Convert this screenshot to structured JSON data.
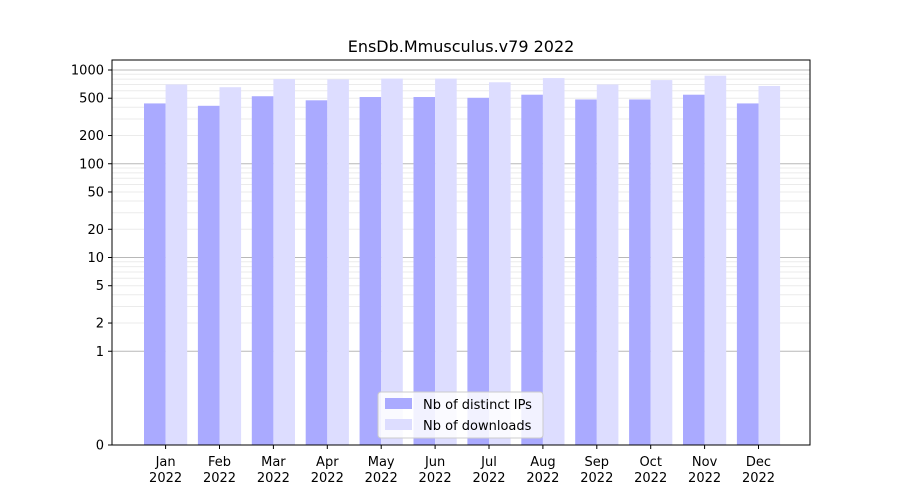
{
  "chart_data": {
    "type": "bar",
    "title": "EnsDb.Mmusculus.v79 2022",
    "xlabel": "",
    "ylabel": "",
    "scale": "symlog",
    "categories": [
      {
        "month": "Jan",
        "year": "2022"
      },
      {
        "month": "Feb",
        "year": "2022"
      },
      {
        "month": "Mar",
        "year": "2022"
      },
      {
        "month": "Apr",
        "year": "2022"
      },
      {
        "month": "May",
        "year": "2022"
      },
      {
        "month": "Jun",
        "year": "2022"
      },
      {
        "month": "Jul",
        "year": "2022"
      },
      {
        "month": "Aug",
        "year": "2022"
      },
      {
        "month": "Sep",
        "year": "2022"
      },
      {
        "month": "Oct",
        "year": "2022"
      },
      {
        "month": "Nov",
        "year": "2022"
      },
      {
        "month": "Dec",
        "year": "2022"
      }
    ],
    "series": [
      {
        "name": "Nb of distinct IPs",
        "color": "#aaaaff",
        "values": [
          440,
          415,
          525,
          475,
          515,
          515,
          505,
          545,
          485,
          485,
          545,
          440
        ]
      },
      {
        "name": "Nb of downloads",
        "color": "#ddddff",
        "values": [
          700,
          655,
          800,
          795,
          810,
          810,
          740,
          820,
          700,
          780,
          870,
          675
        ]
      }
    ],
    "y_ticks": [
      0,
      1,
      2,
      5,
      10,
      20,
      50,
      100,
      200,
      500,
      1000
    ],
    "ylim": [
      0,
      1300
    ],
    "grid": true,
    "legend_position": "bottom-center"
  }
}
